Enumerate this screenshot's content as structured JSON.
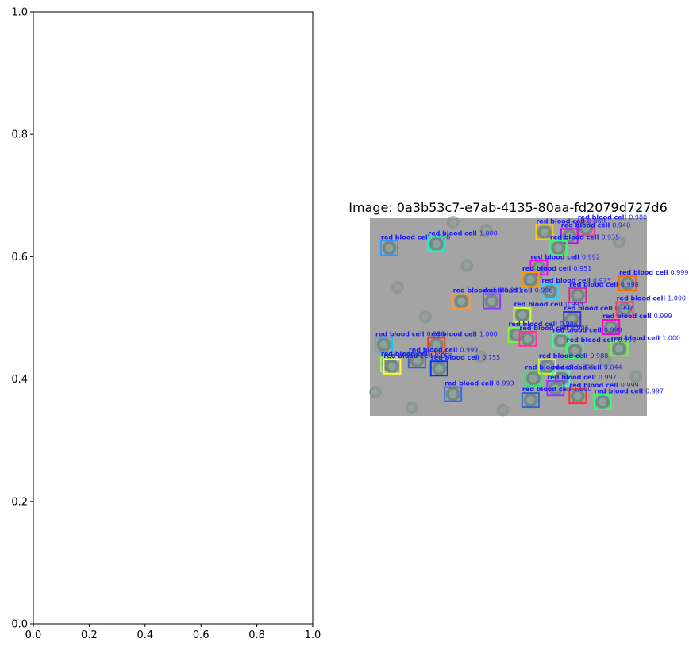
{
  "chart_data": [
    {
      "type": "scatter",
      "title": "",
      "xlabel": "",
      "ylabel": "",
      "xlim": [
        0,
        1
      ],
      "ylim": [
        0,
        1
      ],
      "x_ticks": [
        "0.0",
        "0.2",
        "0.4",
        "0.6",
        "0.8",
        "1.0"
      ],
      "y_ticks": [
        "0.0",
        "0.2",
        "0.4",
        "0.6",
        "0.8",
        "1.0"
      ],
      "grid": false,
      "series": []
    },
    {
      "type": "image",
      "title": "Image: 0a3b53c7-e7ab-4135-80aa-fd2079d727d6",
      "axes_visible": false,
      "background_color": "#a4a4a4",
      "detections": [
        {
          "label": "red blood cell",
          "score": "0.980",
          "x": 0.78,
          "y": 0.05,
          "color": "#ff3399"
        },
        {
          "label": "red blood cell",
          "score": "0.968",
          "x": 0.63,
          "y": 0.07,
          "color": "#ffcc00"
        },
        {
          "label": "red blood cell",
          "score": "0.940",
          "x": 0.72,
          "y": 0.09,
          "color": "#cc00ff"
        },
        {
          "label": "red blood cell",
          "score": "0.998",
          "x": 0.07,
          "y": 0.15,
          "color": "#3399ff"
        },
        {
          "label": "red blood cell",
          "score": "1.000",
          "x": 0.24,
          "y": 0.13,
          "color": "#00ffcc"
        },
        {
          "label": "red blood cell",
          "score": "0.935",
          "x": 0.68,
          "y": 0.15,
          "color": "#33ff66"
        },
        {
          "label": "red blood cell",
          "score": "0.992",
          "x": 0.61,
          "y": 0.25,
          "color": "#ff00ff"
        },
        {
          "label": "red blood cell",
          "score": "0.951",
          "x": 0.58,
          "y": 0.31,
          "color": "#ff9900"
        },
        {
          "label": "red blood cell",
          "score": "0.999",
          "x": 0.93,
          "y": 0.33,
          "color": "#ff6600"
        },
        {
          "label": "red blood cell",
          "score": "0.998",
          "x": 0.75,
          "y": 0.39,
          "color": "#cc3399"
        },
        {
          "label": "red blood cell",
          "score": "0.973",
          "x": 0.65,
          "y": 0.37,
          "color": "#33ccff"
        },
        {
          "label": "red blood cell",
          "score": "0.996",
          "x": 0.44,
          "y": 0.42,
          "color": "#9933ff"
        },
        {
          "label": "red blood cell",
          "score": "0.991",
          "x": 0.33,
          "y": 0.42,
          "color": "#ff9933"
        },
        {
          "label": "red blood cell",
          "score": "1.000",
          "x": 0.92,
          "y": 0.46,
          "color": "#ff3366"
        },
        {
          "label": "red blood cell",
          "score": "0.997",
          "x": 0.73,
          "y": 0.51,
          "color": "#3333cc"
        },
        {
          "label": "red blood cell",
          "score": "0.993",
          "x": 0.55,
          "y": 0.49,
          "color": "#ccff33"
        },
        {
          "label": "red blood cell",
          "score": "0.999",
          "x": 0.87,
          "y": 0.55,
          "color": "#ff00cc"
        },
        {
          "label": "red blood cell",
          "score": "0.999",
          "x": 0.69,
          "y": 0.62,
          "color": "#33ff99"
        },
        {
          "label": "red blood cell",
          "score": "0.986",
          "x": 0.53,
          "y": 0.59,
          "color": "#66ff33"
        },
        {
          "label": "red blood cell",
          "score": "0.996",
          "x": 0.57,
          "y": 0.61,
          "color": "#ff3399"
        },
        {
          "label": "red blood cell",
          "score": "1.000",
          "x": 0.9,
          "y": 0.66,
          "color": "#66ff33"
        },
        {
          "label": "red blood cell",
          "score": "0.999",
          "x": 0.74,
          "y": 0.67,
          "color": "#33ff66"
        },
        {
          "label": "red blood cell",
          "score": "0.986",
          "x": 0.05,
          "y": 0.64,
          "color": "#00ccff"
        },
        {
          "label": "red blood cell",
          "score": "1.000",
          "x": 0.24,
          "y": 0.64,
          "color": "#ff3300"
        },
        {
          "label": "red blood cell",
          "score": "0.999",
          "x": 0.17,
          "y": 0.72,
          "color": "#3366cc"
        },
        {
          "label": "red blood cell",
          "score": "0.991",
          "x": 0.07,
          "y": 0.74,
          "color": "#99ff33"
        },
        {
          "label": "red blood cell",
          "score": "0.999",
          "x": 0.08,
          "y": 0.75,
          "color": "#ffff33"
        },
        {
          "label": "red blood cell",
          "score": "0.755",
          "x": 0.25,
          "y": 0.76,
          "color": "#0033ff"
        },
        {
          "label": "red blood cell",
          "score": "0.988",
          "x": 0.64,
          "y": 0.75,
          "color": "#ccff00"
        },
        {
          "label": "red blood cell",
          "score": "0.844",
          "x": 0.69,
          "y": 0.81,
          "color": "#33ffcc"
        },
        {
          "label": "red blood cell",
          "score": "0.999",
          "x": 0.59,
          "y": 0.81,
          "color": "#00ff66"
        },
        {
          "label": "red blood cell",
          "score": "0.997",
          "x": 0.67,
          "y": 0.86,
          "color": "#9933ff"
        },
        {
          "label": "red blood cell",
          "score": "0.999",
          "x": 0.75,
          "y": 0.9,
          "color": "#ff3333"
        },
        {
          "label": "red blood cell",
          "score": "0.997",
          "x": 0.84,
          "y": 0.93,
          "color": "#33ff66"
        },
        {
          "label": "red blood cell",
          "score": "0.993",
          "x": 0.3,
          "y": 0.89,
          "color": "#3366ff"
        },
        {
          "label": "red blood cell",
          "score": "1.000",
          "x": 0.58,
          "y": 0.92,
          "color": "#3366cc"
        }
      ]
    }
  ]
}
